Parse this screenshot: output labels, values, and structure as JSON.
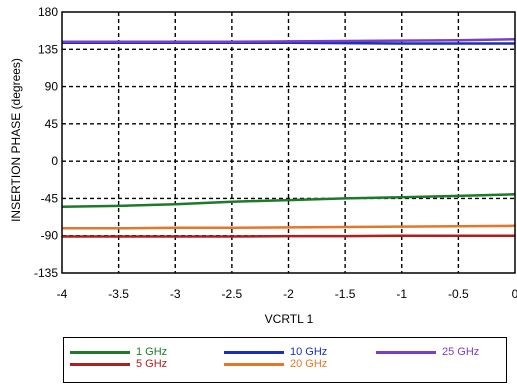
{
  "chart_data": {
    "type": "line",
    "xlabel": "VCRTL 1",
    "ylabel": "INSERTION PHASE (degrees)",
    "xlim": [
      -4,
      0
    ],
    "ylim": [
      -135,
      180
    ],
    "xticks": [
      -4,
      -3.5,
      -3,
      -2.5,
      -2,
      -1.5,
      -1,
      -0.5,
      0
    ],
    "yticks": [
      -135,
      -90,
      -45,
      0,
      45,
      90,
      135,
      180
    ],
    "grid": true,
    "legend_position": "bottom",
    "series": [
      {
        "name": "1 GHz",
        "color": "#1e7a2a",
        "x": [
          -4,
          -3.5,
          -3,
          -2.5,
          -2,
          -1.5,
          -1,
          -0.5,
          0
        ],
        "y": [
          -55,
          -54,
          -52,
          -49,
          -47,
          -45,
          -43.5,
          -42,
          -40
        ]
      },
      {
        "name": "5 GHz",
        "color": "#b01e1e",
        "x": [
          -4,
          -3.5,
          -3,
          -2.5,
          -2,
          -1.5,
          -1,
          -0.5,
          0
        ],
        "y": [
          -91,
          -91,
          -91,
          -91,
          -90.5,
          -90.5,
          -90,
          -90,
          -90
        ]
      },
      {
        "name": "10 GHz",
        "color": "#1a2fb8",
        "x": [
          -4,
          -3.5,
          -3,
          -2.5,
          -2,
          -1.5,
          -1,
          -0.5,
          0
        ],
        "y": [
          143,
          143,
          143,
          143,
          143,
          142.5,
          142,
          142,
          142
        ]
      },
      {
        "name": "20 GHz",
        "color": "#e8762a",
        "x": [
          -4,
          -3.5,
          -3,
          -2.5,
          -2,
          -1.5,
          -1,
          -0.5,
          0
        ],
        "y": [
          -81,
          -81,
          -80.5,
          -80.5,
          -80,
          -79.5,
          -79,
          -78.5,
          -78
        ]
      },
      {
        "name": "25 GHz",
        "color": "#7b3fc4",
        "x": [
          -4,
          -3.5,
          -3,
          -2.5,
          -2,
          -1.5,
          -1,
          -0.5,
          0
        ],
        "y": [
          144,
          144,
          144,
          144,
          144.5,
          145,
          145.5,
          146,
          147
        ]
      }
    ]
  }
}
